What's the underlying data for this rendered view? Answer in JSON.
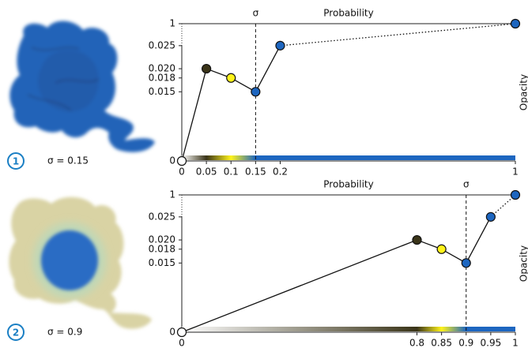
{
  "chart_data": [
    {
      "type": "line",
      "title": "Probability",
      "y_label": "Opacity",
      "panel": "1",
      "caption": "σ = 0.15",
      "sigma_label": "σ",
      "sigma": 0.15,
      "x": [
        0,
        0.05,
        0.1,
        0.15,
        0.2,
        1
      ],
      "values": [
        0,
        0.02,
        0.018,
        0.015,
        0.025,
        1
      ],
      "colors": [
        "#ffffff",
        "#3a3418",
        "#fff31a",
        "#1d66c0",
        "#1d66c0",
        "#1d66c0"
      ],
      "xlim": [
        0,
        1
      ],
      "ylim": [
        0,
        1
      ],
      "xticks": [
        0,
        0.05,
        0.1,
        0.15,
        0.2,
        1
      ],
      "yticks": [
        0,
        0.015,
        0.018,
        {
          "value": 0.02,
          "label": "0.020"
        },
        0.025,
        1
      ],
      "axis_breaks": true,
      "colorbar": true
    },
    {
      "type": "line",
      "title": "Probability",
      "y_label": "Opacity",
      "panel": "2",
      "caption": "σ = 0.9",
      "sigma_label": "σ",
      "sigma": 0.9,
      "x": [
        0,
        0.8,
        0.85,
        0.9,
        0.95,
        1
      ],
      "values": [
        0,
        0.02,
        0.018,
        0.015,
        0.025,
        1
      ],
      "colors": [
        "#ffffff",
        "#3a3418",
        "#fff31a",
        "#1d66c0",
        "#1d66c0",
        "#1d66c0"
      ],
      "xlim": [
        0,
        1
      ],
      "ylim": [
        0,
        1
      ],
      "xticks": [
        0,
        0.8,
        0.85,
        0.9,
        0.95,
        1
      ],
      "yticks": [
        0,
        0.015,
        0.018,
        {
          "value": 0.02,
          "label": "0.020"
        },
        0.025,
        1
      ],
      "axis_breaks": true,
      "colorbar": true
    }
  ]
}
